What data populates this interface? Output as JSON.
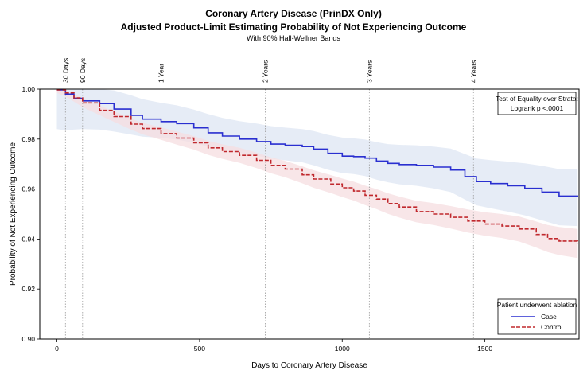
{
  "chart_data": {
    "type": "line",
    "title": "Coronary Artery Disease (PrinDX Only)",
    "subtitle": "Adjusted Product-Limit Estimating Probability of Not Experiencing Outcome",
    "subsubtitle": "With 90% Hall-Wellner Bands",
    "xlabel": "Days to Coronary Artery Disease",
    "ylabel": "Probability of Not Experiencing Outcome",
    "xlim": [
      -60,
      1830
    ],
    "ylim": [
      0.9,
      1.0
    ],
    "x_ticks": [
      0,
      500,
      1000,
      1500
    ],
    "y_ticks": [
      0.9,
      0.92,
      0.94,
      0.96,
      0.98,
      1.0
    ],
    "y_tick_labels": [
      "0.90",
      "0.92",
      "0.94",
      "0.96",
      "0.98",
      "1.00"
    ],
    "reference_lines": [
      {
        "x": 30,
        "label": "30 Days"
      },
      {
        "x": 90,
        "label": "90 Days"
      },
      {
        "x": 365,
        "label": "1 Year"
      },
      {
        "x": 730,
        "label": "2 Years"
      },
      {
        "x": 1095,
        "label": "3 Years"
      },
      {
        "x": 1460,
        "label": "4 Years"
      }
    ],
    "test_box": {
      "line1": "Test of Equality over Strata:",
      "line2": "Logrank p <.0001"
    },
    "legend": {
      "title": "Patient underwent ablation",
      "placement": "bottom-right"
    },
    "series": [
      {
        "name": "Case",
        "color": "#2a2fd0",
        "band_color": "#dde6f3",
        "dash": "solid",
        "x": [
          0,
          30,
          60,
          90,
          150,
          200,
          260,
          300,
          365,
          420,
          480,
          530,
          580,
          640,
          700,
          750,
          800,
          860,
          900,
          950,
          1000,
          1040,
          1080,
          1120,
          1160,
          1200,
          1260,
          1320,
          1380,
          1430,
          1470,
          1520,
          1580,
          1640,
          1700,
          1760,
          1825
        ],
        "y": [
          0.9997,
          0.998,
          0.9963,
          0.9953,
          0.9942,
          0.992,
          0.9895,
          0.988,
          0.987,
          0.9862,
          0.9845,
          0.9825,
          0.9812,
          0.98,
          0.979,
          0.978,
          0.9775,
          0.977,
          0.976,
          0.9743,
          0.9732,
          0.973,
          0.9724,
          0.9712,
          0.9703,
          0.9698,
          0.9695,
          0.9688,
          0.9676,
          0.965,
          0.963,
          0.9622,
          0.9613,
          0.9603,
          0.9588,
          0.9572,
          0.957
        ],
        "lower": [
          0.984,
          0.9835,
          0.9838,
          0.984,
          0.9838,
          0.983,
          0.9818,
          0.981,
          0.9805,
          0.9798,
          0.9785,
          0.977,
          0.9758,
          0.9745,
          0.9733,
          0.9722,
          0.9715,
          0.9707,
          0.9695,
          0.9677,
          0.9664,
          0.966,
          0.9652,
          0.9638,
          0.9627,
          0.9619,
          0.9613,
          0.9603,
          0.9588,
          0.9558,
          0.9535,
          0.9523,
          0.951,
          0.9495,
          0.9475,
          0.9455,
          0.9452
        ],
        "upper": [
          1.0,
          1.0,
          1.0,
          1.0,
          1.0,
          0.9995,
          0.9975,
          0.996,
          0.9945,
          0.9935,
          0.9918,
          0.99,
          0.9885,
          0.9872,
          0.9862,
          0.9852,
          0.9846,
          0.984,
          0.9832,
          0.9817,
          0.9806,
          0.9803,
          0.9798,
          0.9788,
          0.978,
          0.9777,
          0.9775,
          0.977,
          0.9762,
          0.974,
          0.9722,
          0.9716,
          0.971,
          0.9703,
          0.9693,
          0.968,
          0.968
        ]
      },
      {
        "name": "Control",
        "color": "#c0282d",
        "band_color": "#f6dde0",
        "dash": "dashed",
        "x": [
          0,
          30,
          60,
          90,
          150,
          200,
          260,
          300,
          365,
          420,
          480,
          530,
          580,
          640,
          700,
          750,
          800,
          860,
          900,
          960,
          1000,
          1040,
          1080,
          1120,
          1160,
          1200,
          1260,
          1320,
          1380,
          1440,
          1500,
          1560,
          1620,
          1680,
          1720,
          1760,
          1825
        ],
        "y": [
          0.9997,
          0.9985,
          0.9965,
          0.9945,
          0.9915,
          0.989,
          0.986,
          0.9842,
          0.9822,
          0.9804,
          0.9785,
          0.9765,
          0.975,
          0.9735,
          0.9715,
          0.9695,
          0.968,
          0.9657,
          0.964,
          0.962,
          0.9605,
          0.9592,
          0.9575,
          0.956,
          0.9542,
          0.9528,
          0.951,
          0.95,
          0.9487,
          0.9472,
          0.946,
          0.9452,
          0.944,
          0.9418,
          0.9402,
          0.9392,
          0.9382
        ],
        "lower": [
          0.9985,
          0.997,
          0.995,
          0.9928,
          0.9896,
          0.9869,
          0.9838,
          0.9819,
          0.9797,
          0.9778,
          0.9758,
          0.9737,
          0.9721,
          0.9705,
          0.9684,
          0.9663,
          0.9647,
          0.9623,
          0.9605,
          0.9584,
          0.9568,
          0.9554,
          0.9536,
          0.952,
          0.9501,
          0.9486,
          0.9467,
          0.9456,
          0.9442,
          0.9426,
          0.9413,
          0.9404,
          0.939,
          0.9366,
          0.9348,
          0.9336,
          0.9324
        ],
        "upper": [
          1.0,
          0.9998,
          0.998,
          0.9962,
          0.9934,
          0.9911,
          0.9882,
          0.9865,
          0.9847,
          0.983,
          0.9812,
          0.9793,
          0.9779,
          0.9765,
          0.9746,
          0.9727,
          0.9713,
          0.9691,
          0.9675,
          0.9656,
          0.9642,
          0.963,
          0.9614,
          0.96,
          0.9583,
          0.957,
          0.9553,
          0.9544,
          0.9532,
          0.9518,
          0.9507,
          0.95,
          0.949,
          0.947,
          0.9456,
          0.9448,
          0.944
        ]
      }
    ]
  }
}
